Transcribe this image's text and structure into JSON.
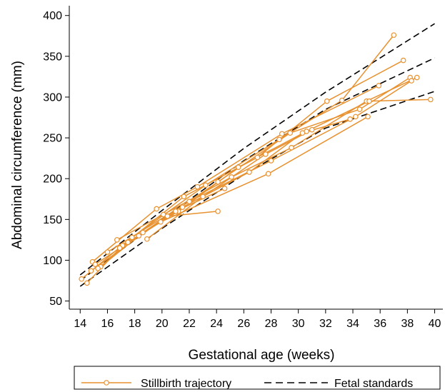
{
  "chart_data": {
    "type": "line",
    "title": "",
    "xlabel": "Gestational age (weeks)",
    "ylabel": "Abdominal circumference (mm)",
    "xlim": [
      13.2,
      40.6
    ],
    "ylim": [
      40,
      412
    ],
    "xticks": [
      14,
      16,
      18,
      20,
      22,
      24,
      26,
      28,
      30,
      32,
      34,
      36,
      38,
      40
    ],
    "yticks": [
      50,
      100,
      150,
      200,
      250,
      300,
      350,
      400
    ],
    "grid": false,
    "legend_position": "bottom",
    "colors": {
      "trajectory": "#e8912f",
      "standard": "#000000"
    },
    "legend": {
      "trajectory_label": "Stillbirth trajectory",
      "standard_label": "Fetal standards"
    },
    "standards": [
      {
        "x": [
          14,
          20,
          26,
          32,
          40
        ],
        "y": [
          82,
          161,
          237,
          306,
          390
        ]
      },
      {
        "x": [
          14,
          20,
          26,
          32,
          40
        ],
        "y": [
          75,
          150,
          222,
          285,
          348
        ]
      },
      {
        "x": [
          14,
          20,
          26,
          32,
          40
        ],
        "y": [
          68,
          139,
          205,
          262,
          307
        ]
      }
    ],
    "trajectories": [
      {
        "x": [
          14.1,
          17.8,
          23.2,
          28.6,
          33.2,
          37.0
        ],
        "y": [
          77,
          128,
          192,
          248,
          296,
          376
        ]
      },
      {
        "x": [
          14.5,
          17.1,
          21.6,
          27.0,
          32.1,
          37.7
        ],
        "y": [
          72,
          118,
          178,
          226,
          295,
          345
        ]
      },
      {
        "x": [
          14.9,
          19.6,
          22.6,
          28.8,
          35.9
        ],
        "y": [
          98,
          163,
          190,
          255,
          314
        ]
      },
      {
        "x": [
          15.5,
          18.6,
          24.1,
          29.4,
          34.5,
          38.2
        ],
        "y": [
          92,
          134,
          196,
          256,
          285,
          324
        ]
      },
      {
        "x": [
          16.7,
          20.1,
          25.1,
          29.5,
          35.0,
          38.7
        ],
        "y": [
          125,
          156,
          202,
          238,
          295,
          324
        ]
      },
      {
        "x": [
          15.1,
          19.9,
          27.8,
          35.1
        ],
        "y": [
          95,
          147,
          206,
          276
        ]
      },
      {
        "x": [
          14.8,
          20.4,
          24.1
        ],
        "y": [
          87,
          154,
          160
        ]
      },
      {
        "x": [
          16.0,
          22.0,
          28.0,
          34.2,
          38.3
        ],
        "y": [
          110,
          172,
          222,
          276,
          320
        ]
      },
      {
        "x": [
          17.5,
          21.2,
          25.6,
          30.6,
          35.2,
          39.7
        ],
        "y": [
          122,
          160,
          214,
          258,
          295,
          297
        ]
      },
      {
        "x": [
          16.9,
          21.5,
          26.4,
          30.3,
          33.8
        ],
        "y": [
          115,
          165,
          208,
          256,
          273
        ]
      },
      {
        "x": [
          18.9,
          23.0,
          27.6,
          31.0
        ],
        "y": [
          126,
          178,
          230,
          260
        ]
      },
      {
        "x": [
          15.3,
          18.3,
          21.0,
          24.6
        ],
        "y": [
          90,
          130,
          160,
          188
        ]
      }
    ]
  }
}
